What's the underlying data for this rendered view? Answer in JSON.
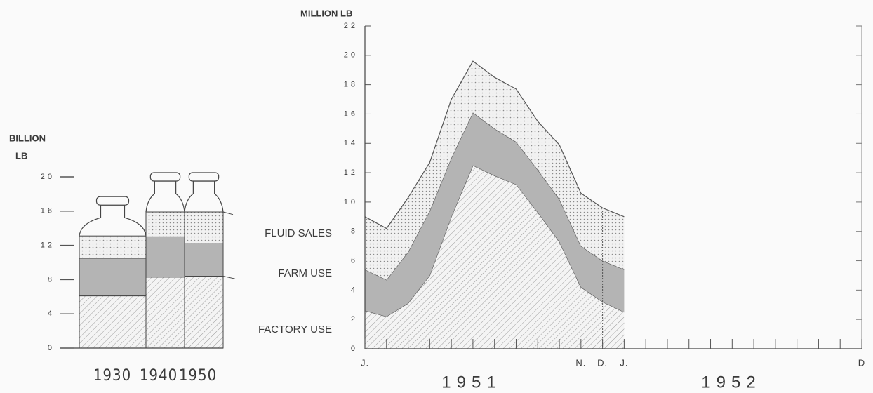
{
  "chart_data": [
    {
      "type": "bar",
      "stacked": true,
      "y_label": [
        "BILLION",
        "LB"
      ],
      "categories": [
        "1930",
        "1940",
        "1950"
      ],
      "series": [
        {
          "name": "FACTORY USE",
          "color": "#cfcfcf",
          "values": [
            6.1,
            8.3,
            8.4
          ]
        },
        {
          "name": "FARM USE",
          "color": "#b4b4b4",
          "values": [
            4.4,
            4.7,
            3.8
          ]
        },
        {
          "name": "FLUID SALES",
          "color": "#d8d8d8",
          "values": [
            2.6,
            2.9,
            3.7
          ]
        }
      ],
      "ylim": [
        0,
        20
      ],
      "yticks": [
        0,
        4,
        8,
        12,
        16,
        20
      ]
    },
    {
      "type": "area",
      "stacked": true,
      "title": "MILLION LB",
      "categories": [
        "J.",
        null,
        null,
        null,
        null,
        null,
        null,
        null,
        null,
        null,
        "N.",
        "D.",
        "J.",
        null,
        null,
        null,
        null,
        null,
        null,
        null,
        null,
        null,
        null,
        "D"
      ],
      "annotations": [
        "1951",
        "1952"
      ],
      "series": [
        {
          "color": "#cfcfcf",
          "values": [
            2.6,
            2.2,
            3.1,
            5.0,
            9.0,
            12.5,
            11.8,
            11.2,
            9.3,
            7.3,
            4.2,
            3.2,
            2.5,
            null,
            null,
            null,
            null,
            null,
            null,
            null,
            null,
            null,
            null,
            null
          ]
        },
        {
          "color": "#b4b4b4",
          "values": [
            2.8,
            2.5,
            3.5,
            4.4,
            4.0,
            3.6,
            3.2,
            2.9,
            2.9,
            2.9,
            2.8,
            2.8,
            2.9,
            null,
            null,
            null,
            null,
            null,
            null,
            null,
            null,
            null,
            null,
            null
          ]
        },
        {
          "color": "#d8d8d8",
          "values": [
            3.6,
            3.5,
            3.7,
            3.3,
            4.0,
            3.5,
            3.5,
            3.6,
            3.3,
            3.7,
            3.6,
            3.6,
            3.6,
            null,
            null,
            null,
            null,
            null,
            null,
            null,
            null,
            null,
            null,
            null
          ]
        }
      ],
      "ylim": [
        0,
        22
      ],
      "yticks": [
        0,
        2,
        4,
        6,
        8,
        10,
        12,
        14,
        16,
        18,
        20,
        22
      ]
    }
  ]
}
